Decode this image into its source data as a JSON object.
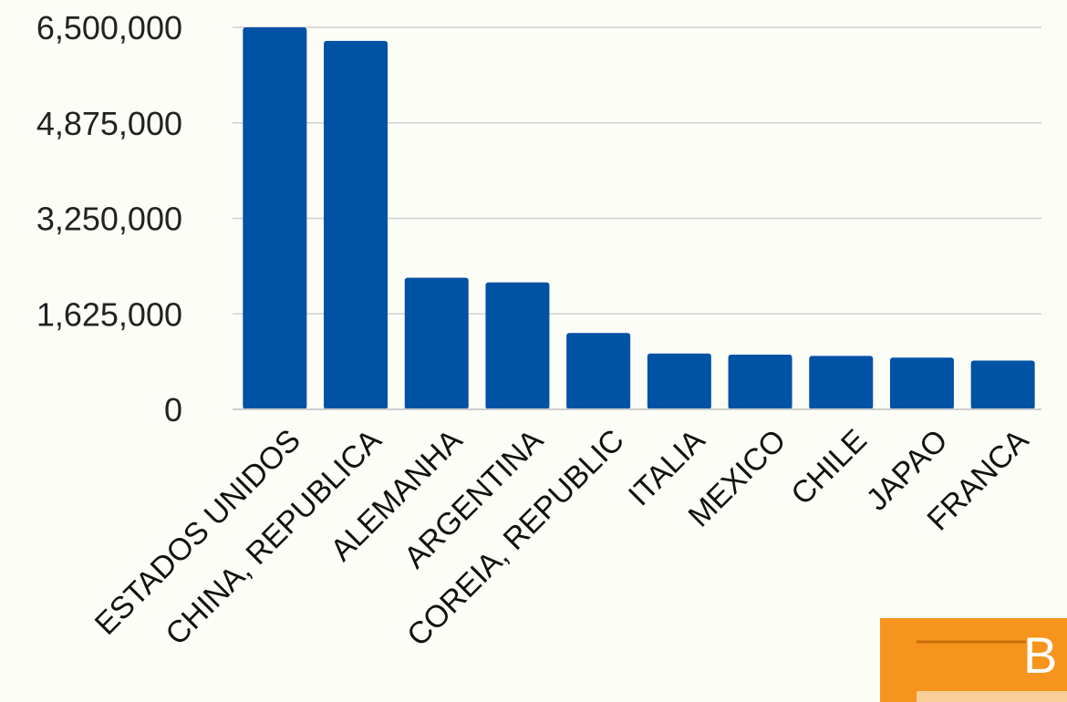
{
  "chart_data": {
    "type": "bar",
    "title": "",
    "xlabel": "",
    "ylabel": "",
    "ylim": [
      0,
      6500000
    ],
    "yticks": [
      "0",
      "1,625,000",
      "3,250,000",
      "4,875,000",
      "6,500,000"
    ],
    "ytick_values": [
      0,
      1625000,
      3250000,
      4875000,
      6500000
    ],
    "grid": true,
    "bar_color": "#0052a5",
    "categories": [
      "ESTADOS UNIDOS",
      "CHINA, REPUBLICA",
      "ALEMANHA",
      "ARGENTINA",
      "COREIA, REPUBLIC",
      "ITALIA",
      "MEXICO",
      "CHILE",
      "JAPAO",
      "FRANCA"
    ],
    "values": [
      6500000,
      6270000,
      2240000,
      2160000,
      1300000,
      950000,
      930000,
      910000,
      880000,
      830000
    ]
  },
  "watermark": {
    "letter": "B",
    "color": "#f7941d"
  }
}
